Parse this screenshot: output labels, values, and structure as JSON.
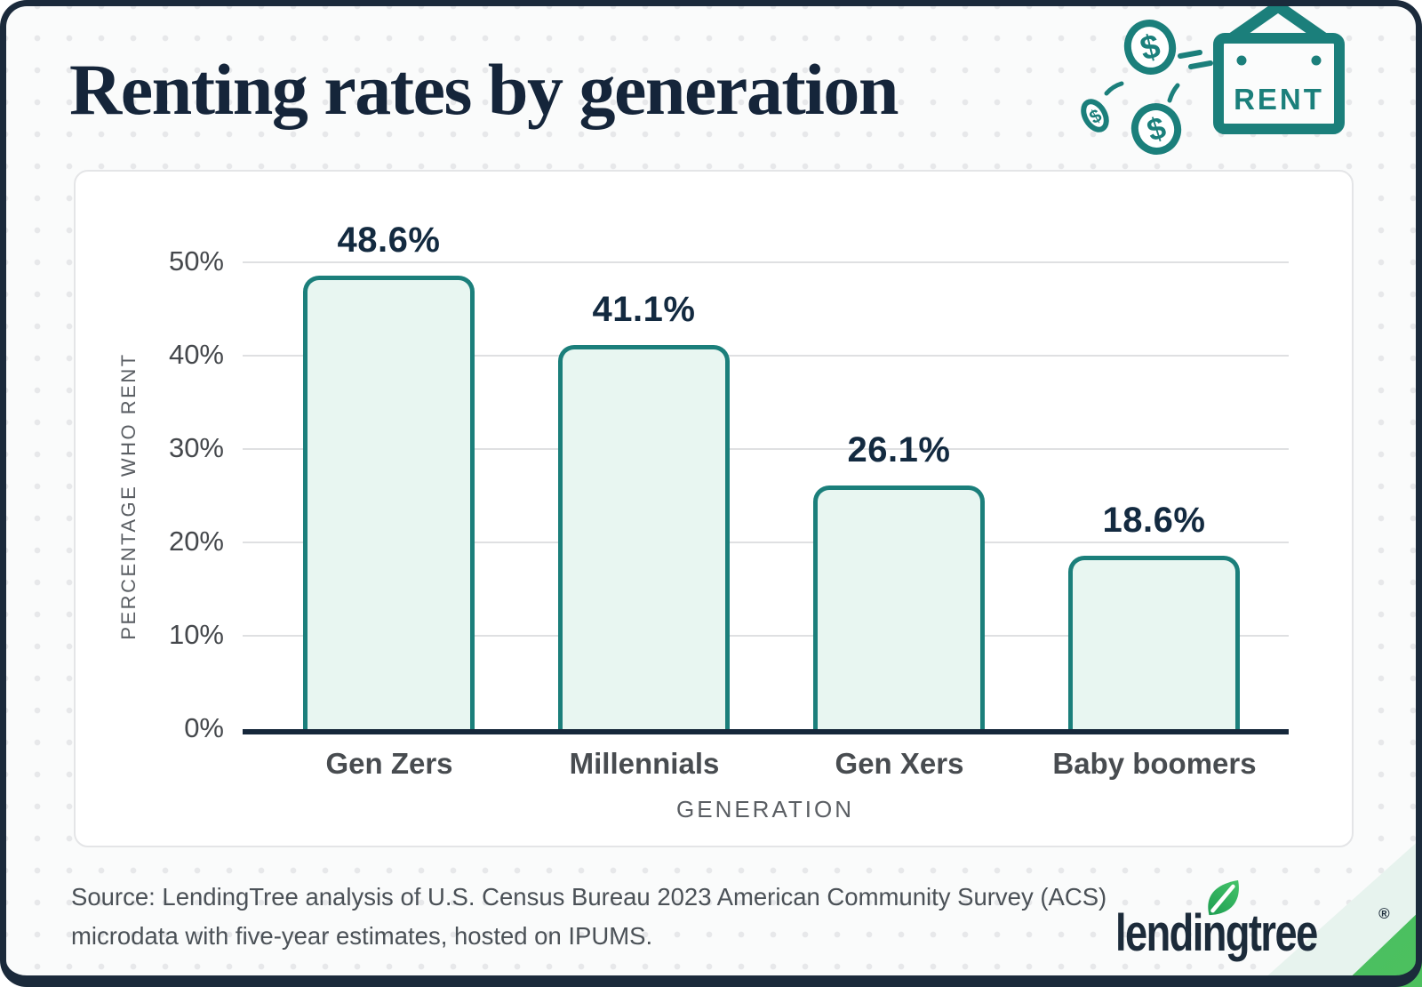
{
  "title": "Renting rates by generation",
  "illustration": {
    "sign_text": "RENT",
    "coin_symbol": "$",
    "accent_teal": "#1b7f7b"
  },
  "source": {
    "line1": "Source: LendingTree analysis of U.S. Census Bureau 2023 American Community Survey (ACS)",
    "line2": "microdata with five-year estimates, hosted on IPUMS."
  },
  "logo": {
    "text": "lendingtree",
    "registered": "®",
    "leaf_icon": "leaf-icon",
    "navy": "#1c2b3a",
    "green": "#35b45f"
  },
  "colors": {
    "frame_navy": "#1b2a3b",
    "title_navy": "#15253a",
    "bar_border_teal": "#1b7f7b",
    "bar_fill_mint": "#e8f6f1",
    "gridline_gray": "#dfe0e2",
    "value_label_navy": "#132a40",
    "corner_stripe_mint": "#e7f3ee",
    "corner_stripe_green": "#3fb877"
  },
  "chart_data": {
    "type": "bar",
    "title": "Renting rates by generation",
    "categories": [
      "Gen Zers",
      "Millennials",
      "Gen Xers",
      "Baby boomers"
    ],
    "values": [
      48.6,
      41.1,
      26.1,
      18.6
    ],
    "value_labels": [
      "48.6%",
      "41.1%",
      "26.1%",
      "18.6%"
    ],
    "xlabel": "GENERATION",
    "ylabel": "PERCENTAGE WHO RENT",
    "yticks": [
      0,
      10,
      20,
      30,
      40,
      50
    ],
    "ytick_labels": [
      "0%",
      "10%",
      "20%",
      "30%",
      "40%",
      "50%"
    ],
    "ylim": [
      0,
      50
    ],
    "value_suffix": "%",
    "grid": "horizontal",
    "legend": "none"
  }
}
